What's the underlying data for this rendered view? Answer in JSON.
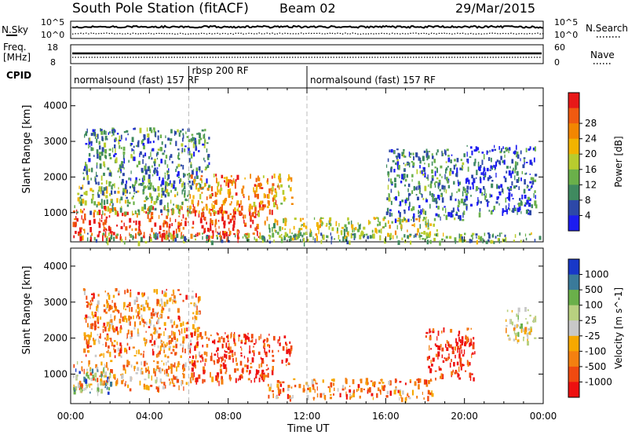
{
  "header": {
    "station": "South Pole Station (fitACF)",
    "beam": "Beam 02",
    "date": "29/Mar/2015"
  },
  "left_labels": {
    "nsky": "N.Sky",
    "freq": "Freq.",
    "freq_unit": "[MHz]",
    "cpid": "CPID",
    "nsky_top": "10^5",
    "nsky_bot": "10^0",
    "freq_top": "18",
    "freq_bot": "8"
  },
  "right_labels": {
    "nsearch": "N.Search",
    "nave": "Nave",
    "nsearch_top": "10^5",
    "nsearch_bot": "10^0",
    "nave_top": "60",
    "nave_bot": "0"
  },
  "cpid_segments": [
    {
      "label": "normalsound (fast) 157 RF",
      "start": 0,
      "end": 6
    },
    {
      "label": "rbsp 200 RF",
      "start": 6,
      "end": 12
    },
    {
      "label": "normalsound (fast) 157 RF",
      "start": 12,
      "end": 24
    }
  ],
  "colors": {
    "power": [
      "#1c1cf0",
      "#2d48a8",
      "#3f8a5f",
      "#6ab04a",
      "#b8cc2e",
      "#f2b300",
      "#f38600",
      "#f05a10",
      "#e81818"
    ],
    "velocity": [
      "#ee1010",
      "#f04a10",
      "#f48010",
      "#f6a800",
      "#c8c8c8",
      "#b8d080",
      "#6ab04a",
      "#3a7a9a",
      "#1838c8"
    ]
  },
  "chart_data": [
    {
      "type": "heatmap",
      "ylabel": "Slant Range [km]",
      "xlabel": "Time UT",
      "x_ticks": [
        "00:00",
        "04:00",
        "08:00",
        "12:00",
        "16:00",
        "20:00",
        "00:00"
      ],
      "y_ticks": [
        "1000",
        "2000",
        "3000",
        "4000"
      ],
      "ylim": [
        180,
        4500
      ],
      "xlim": [
        0,
        24
      ],
      "colorbar_label": "Power [dB]",
      "colorbar_ticks": [
        "4",
        "8",
        "12",
        "16",
        "20",
        "24",
        "28"
      ],
      "blobs": [
        {
          "t0": 0.1,
          "t1": 9.6,
          "r0": 300,
          "r1": 1200,
          "level": 0.92
        },
        {
          "t0": 0.1,
          "t1": 6.2,
          "r0": 1000,
          "r1": 1800,
          "level": 0.4
        },
        {
          "t0": 0.6,
          "t1": 7.0,
          "r0": 1700,
          "r1": 3400,
          "level": 0.28
        },
        {
          "t0": 6.0,
          "t1": 10.5,
          "r0": 1000,
          "r1": 2100,
          "level": 0.72
        },
        {
          "t0": 10.5,
          "t1": 11.2,
          "r0": 1200,
          "r1": 2100,
          "level": 0.55
        },
        {
          "t0": 9.8,
          "t1": 18.6,
          "r0": 350,
          "r1": 900,
          "level": 0.5
        },
        {
          "t0": 16.0,
          "t1": 20.0,
          "r0": 800,
          "r1": 2800,
          "level": 0.25
        },
        {
          "t0": 20.0,
          "t1": 23.6,
          "r0": 1000,
          "r1": 2900,
          "level": 0.18
        },
        {
          "t0": 0.2,
          "t1": 23.8,
          "r0": 200,
          "r1": 450,
          "level": 0.35
        }
      ]
    },
    {
      "type": "heatmap",
      "ylabel": "Slant Range [km]",
      "xlabel": "Time UT",
      "x_ticks": [
        "00:00",
        "04:00",
        "08:00",
        "12:00",
        "16:00",
        "20:00",
        "00:00"
      ],
      "y_ticks": [
        "1000",
        "2000",
        "3000",
        "4000"
      ],
      "ylim": [
        180,
        4500
      ],
      "xlim": [
        0,
        24
      ],
      "colorbar_label": "Velocity [m s^-1]",
      "colorbar_ticks": [
        "1000",
        "500",
        "100",
        "25",
        "-25",
        "-100",
        "-500",
        "-1000"
      ],
      "blobs": [
        {
          "t0": 0.1,
          "t1": 6.2,
          "r0": 600,
          "r1": 1400,
          "level": 0.35
        },
        {
          "t0": 0.6,
          "t1": 6.5,
          "r0": 1500,
          "r1": 3400,
          "level": 0.3
        },
        {
          "t0": 6.0,
          "t1": 10.3,
          "r0": 800,
          "r1": 2200,
          "level": 0.12
        },
        {
          "t0": 10.5,
          "t1": 11.2,
          "r0": 1200,
          "r1": 2100,
          "level": 0.12
        },
        {
          "t0": 10.0,
          "t1": 18.4,
          "r0": 350,
          "r1": 900,
          "level": 0.3
        },
        {
          "t0": 18.0,
          "t1": 20.5,
          "r0": 900,
          "r1": 2300,
          "level": 0.1
        },
        {
          "t0": 22.0,
          "t1": 23.6,
          "r0": 1900,
          "r1": 2900,
          "level": 0.5
        },
        {
          "t0": 0.1,
          "t1": 2.0,
          "r0": 500,
          "r1": 1200,
          "level": 0.72
        }
      ]
    }
  ]
}
